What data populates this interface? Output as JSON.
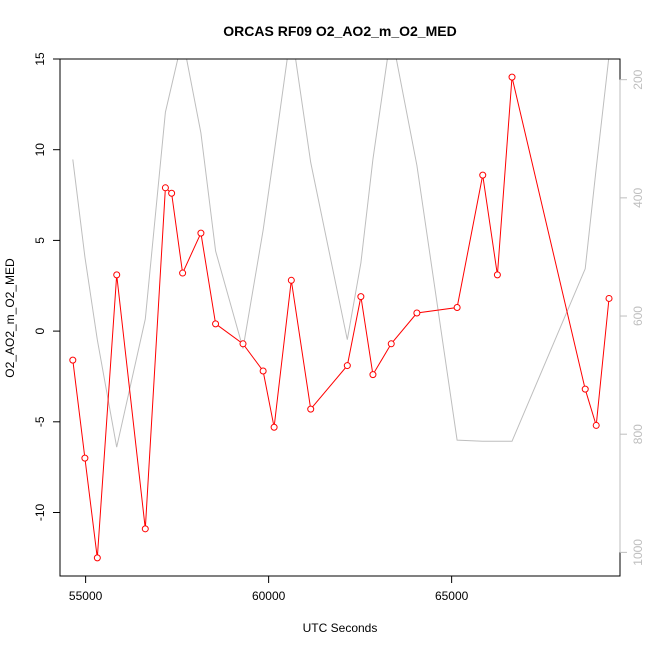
{
  "chart_data": {
    "type": "line",
    "title": "ORCAS RF09 O2_AO2_m_O2_MED",
    "xlabel": "UTC Seconds",
    "ylabel": "O2_AO2_m_O2_MED",
    "xlim": [
      54300,
      69600
    ],
    "ylim": [
      -13.5,
      15
    ],
    "y2lim": [
      1040,
      165
    ],
    "x_ticks": [
      55000,
      60000,
      65000
    ],
    "y_ticks": [
      -10,
      -5,
      0,
      5,
      10,
      15
    ],
    "y2_ticks": [
      200,
      400,
      600,
      800,
      1000
    ],
    "grid": false,
    "legend": "none",
    "series": [
      {
        "axis": "left",
        "color": "#ff0000",
        "marker": "open-circle",
        "x": [
          54650,
          54980,
          55320,
          55850,
          56630,
          57180,
          57350,
          57650,
          58150,
          58550,
          59300,
          59850,
          60150,
          60620,
          61150,
          62150,
          62520,
          62850,
          63350,
          64050,
          65150,
          65850,
          66250,
          66650,
          68650,
          68950,
          69300
        ],
        "y": [
          -1.6,
          -7.0,
          -12.5,
          3.1,
          -10.9,
          7.9,
          7.6,
          3.2,
          5.4,
          0.4,
          -0.7,
          -2.2,
          -5.3,
          2.8,
          -4.3,
          -1.9,
          1.9,
          -2.4,
          -0.7,
          1.0,
          1.3,
          8.6,
          3.1,
          14.0,
          -3.2,
          -5.2,
          1.8
        ]
      },
      {
        "axis": "right",
        "color": "#bebebe",
        "marker": "none",
        "x": [
          54650,
          54980,
          55320,
          55850,
          56630,
          57180,
          57650,
          58150,
          58550,
          59300,
          59850,
          60150,
          60620,
          61150,
          62150,
          62520,
          62850,
          63350,
          64050,
          65150,
          65850,
          66650,
          68650,
          68950,
          69300
        ],
        "y": [
          335,
          500,
          640,
          822,
          605,
          255,
          130,
          290,
          490,
          655,
          455,
          325,
          115,
          340,
          640,
          510,
          335,
          120,
          345,
          810,
          812,
          812,
          520,
          350,
          160
        ]
      }
    ]
  }
}
